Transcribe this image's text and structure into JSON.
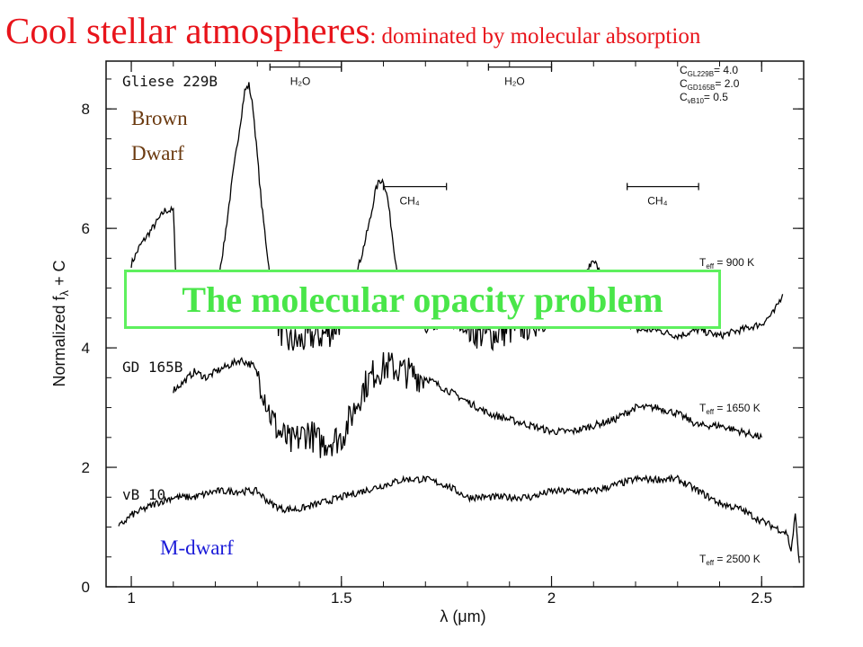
{
  "slide": {
    "title_main": "Cool stellar atmospheres",
    "title_sub": ": dominated by molecular absorption",
    "banner": "The molecular opacity problem",
    "brown_dwarf_label": [
      "Brown",
      "Dwarf"
    ],
    "m_dwarf_label": "M-dwarf",
    "colors": {
      "title": "#e8141b",
      "banner": "#49e649",
      "brown": "#6b3a10",
      "blue": "#1a1ad8"
    }
  },
  "chart_data": {
    "type": "line",
    "xlabel": "λ (μm)",
    "ylabel": "Normalized f",
    "ylabel_sub": "λ",
    "ylabel_suffix": " + C",
    "xlim": [
      0.94,
      2.6
    ],
    "ylim": [
      0,
      8.8
    ],
    "xticks": [
      1,
      1.5,
      2,
      2.5
    ],
    "xtick_labels": [
      "1",
      "1.5",
      "2",
      "2.5"
    ],
    "yticks": [
      0,
      2,
      4,
      6,
      8
    ],
    "ytick_labels": [
      "0",
      "2",
      "4",
      "6",
      "8"
    ],
    "offsets": [
      "C",
      "GL229B",
      "= 4.0",
      "C",
      "GD165B",
      "= 2.0",
      "C",
      "vB10",
      "= 0.5"
    ],
    "bands": [
      {
        "label": "H₂O",
        "x": [
          1.33,
          1.5
        ],
        "y": 8.7
      },
      {
        "label": "H₂O",
        "x": [
          1.85,
          2.0
        ],
        "y": 8.7
      },
      {
        "label": "CH₄",
        "x": [
          1.6,
          1.75
        ],
        "y": 6.7
      },
      {
        "label": "CH₄",
        "x": [
          2.18,
          2.35
        ],
        "y": 6.7
      }
    ],
    "series": [
      {
        "name": "Gliese 229B",
        "teff": "T",
        "teff_sub": "eff",
        "teff_value": " = 900 K",
        "color": "#000000",
        "x": [
          1.0,
          1.02,
          1.04,
          1.06,
          1.08,
          1.09,
          1.1,
          1.105,
          1.11,
          1.2,
          1.22,
          1.24,
          1.26,
          1.27,
          1.28,
          1.29,
          1.3,
          1.31,
          1.32,
          1.33,
          1.35,
          1.37,
          1.4,
          1.43,
          1.45,
          1.48,
          1.5,
          1.53,
          1.55,
          1.57,
          1.58,
          1.59,
          1.6,
          1.61,
          1.63,
          1.66,
          1.7,
          1.75,
          1.8,
          1.85,
          1.9,
          1.95,
          2.0,
          2.05,
          2.08,
          2.1,
          2.13,
          2.17,
          2.2,
          2.25,
          2.3,
          2.35,
          2.4,
          2.45,
          2.5,
          2.53,
          2.55
        ],
        "y": [
          5.4,
          5.7,
          5.9,
          6.1,
          6.3,
          6.3,
          6.3,
          5.4,
          4.8,
          4.9,
          5.7,
          6.8,
          7.8,
          8.3,
          8.4,
          8.0,
          7.2,
          6.4,
          5.8,
          5.2,
          4.4,
          4.1,
          4.1,
          4.2,
          4.2,
          4.3,
          4.5,
          5.1,
          5.6,
          6.2,
          6.6,
          6.8,
          6.8,
          6.5,
          5.4,
          4.5,
          4.3,
          4.4,
          4.3,
          4.2,
          4.3,
          4.4,
          4.6,
          5.0,
          5.2,
          5.5,
          5.0,
          4.5,
          4.3,
          4.3,
          4.2,
          4.3,
          4.2,
          4.3,
          4.4,
          4.6,
          4.9
        ]
      },
      {
        "name": "GD 165B",
        "teff": "T",
        "teff_sub": "eff",
        "teff_value": " = 1650 K",
        "color": "#000000",
        "x": [
          1.1,
          1.12,
          1.15,
          1.18,
          1.2,
          1.23,
          1.26,
          1.29,
          1.31,
          1.33,
          1.35,
          1.38,
          1.42,
          1.45,
          1.5,
          1.52,
          1.55,
          1.58,
          1.61,
          1.65,
          1.7,
          1.75,
          1.8,
          1.85,
          1.9,
          1.95,
          2.0,
          2.05,
          2.1,
          2.15,
          2.2,
          2.25,
          2.3,
          2.35,
          2.4,
          2.45,
          2.5
        ],
        "y": [
          3.3,
          3.4,
          3.6,
          3.5,
          3.6,
          3.7,
          3.8,
          3.7,
          3.4,
          2.9,
          2.6,
          2.4,
          2.6,
          2.4,
          2.5,
          2.8,
          3.3,
          3.6,
          3.7,
          3.6,
          3.5,
          3.3,
          3.1,
          2.9,
          2.8,
          2.7,
          2.6,
          2.6,
          2.7,
          2.8,
          3.0,
          3.0,
          2.9,
          2.7,
          2.7,
          2.6,
          2.5
        ]
      },
      {
        "name": "vB 10",
        "teff": "T",
        "teff_sub": "eff",
        "teff_value": " = 2500 K",
        "color": "#000000",
        "x": [
          0.97,
          1.0,
          1.03,
          1.06,
          1.1,
          1.15,
          1.2,
          1.25,
          1.3,
          1.33,
          1.36,
          1.4,
          1.45,
          1.5,
          1.55,
          1.6,
          1.65,
          1.7,
          1.75,
          1.8,
          1.85,
          1.9,
          1.95,
          2.0,
          2.05,
          2.1,
          2.15,
          2.2,
          2.25,
          2.3,
          2.35,
          2.4,
          2.45,
          2.5,
          2.53,
          2.56,
          2.57,
          2.58,
          2.59
        ],
        "y": [
          1.0,
          1.2,
          1.3,
          1.4,
          1.5,
          1.5,
          1.6,
          1.6,
          1.6,
          1.4,
          1.3,
          1.3,
          1.4,
          1.5,
          1.6,
          1.7,
          1.8,
          1.8,
          1.7,
          1.5,
          1.5,
          1.5,
          1.5,
          1.6,
          1.6,
          1.6,
          1.7,
          1.8,
          1.8,
          1.8,
          1.6,
          1.4,
          1.3,
          1.1,
          1.0,
          0.9,
          0.6,
          1.2,
          0.4
        ]
      }
    ]
  }
}
